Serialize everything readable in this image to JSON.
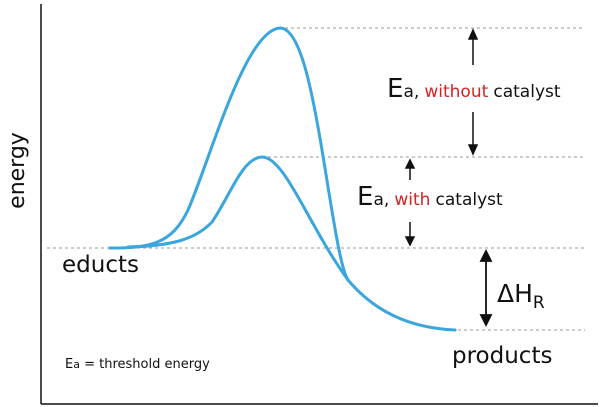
{
  "labels": {
    "y_axis_title": "energy",
    "educts": "educts",
    "products": "products",
    "ea_without": {
      "symbol": "E",
      "subscript": "a,",
      "highlight": "without",
      "tail": "catalyst"
    },
    "ea_with": {
      "symbol": "E",
      "subscript": "a,",
      "highlight": "with",
      "tail": "catalyst"
    },
    "delta_h": {
      "symbol": "ΔH",
      "subscript": "R"
    },
    "footnote": {
      "symbol": "E",
      "subscript": "a",
      "text": "= threshold energy"
    }
  },
  "colors": {
    "curve": "#3aa6dd",
    "label_green": "#1e9a3c",
    "label_red": "#d32323",
    "dashed_line": "#9a9a9a",
    "axis": "#111111"
  },
  "icons": [
    "double-arrow-up-down-icon"
  ]
}
